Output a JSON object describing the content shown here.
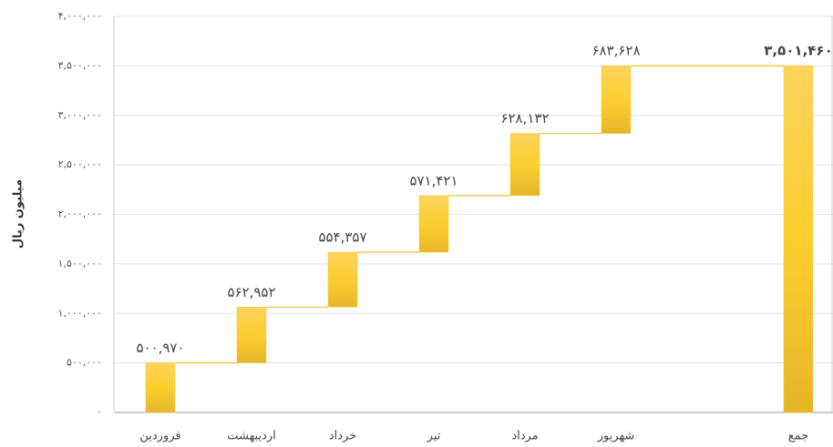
{
  "chart_data": {
    "type": "waterfall",
    "y_label": "میلیون ریال",
    "categories": [
      "فروردین",
      "اردیبهشت",
      "خرداد",
      "تیر",
      "مرداد",
      "شهریور",
      null,
      "جمع"
    ],
    "values": [
      500970,
      562952,
      554357,
      571421,
      628132,
      683628,
      null,
      3501460
    ],
    "value_labels": [
      "۵۰۰,۹۷۰",
      "۵۶۲,۹۵۲",
      "۵۵۴,۳۵۷",
      "۵۷۱,۴۲۱",
      "۶۲۸,۱۳۲",
      "۶۸۳,۶۲۸",
      null,
      "۳,۵۰۱,۴۶۰"
    ],
    "last_is_total": true,
    "color": "#f7c836",
    "ylim": [
      0,
      4000000
    ],
    "yticks": [
      {
        "value": 0,
        "label": "۰"
      },
      {
        "value": 500000,
        "label": "۵۰۰,۰۰۰"
      },
      {
        "value": 1000000,
        "label": "۱,۰۰۰,۰۰۰"
      },
      {
        "value": 1500000,
        "label": "۱,۵۰۰,۰۰۰"
      },
      {
        "value": 2000000,
        "label": "۲,۰۰۰,۰۰۰"
      },
      {
        "value": 2500000,
        "label": "۲,۵۰۰,۰۰۰"
      },
      {
        "value": 3000000,
        "label": "۳,۰۰۰,۰۰۰"
      },
      {
        "value": 3500000,
        "label": "۳,۵۰۰,۰۰۰"
      },
      {
        "value": 4000000,
        "label": "۴,۰۰۰,۰۰۰"
      }
    ],
    "grid": true
  }
}
